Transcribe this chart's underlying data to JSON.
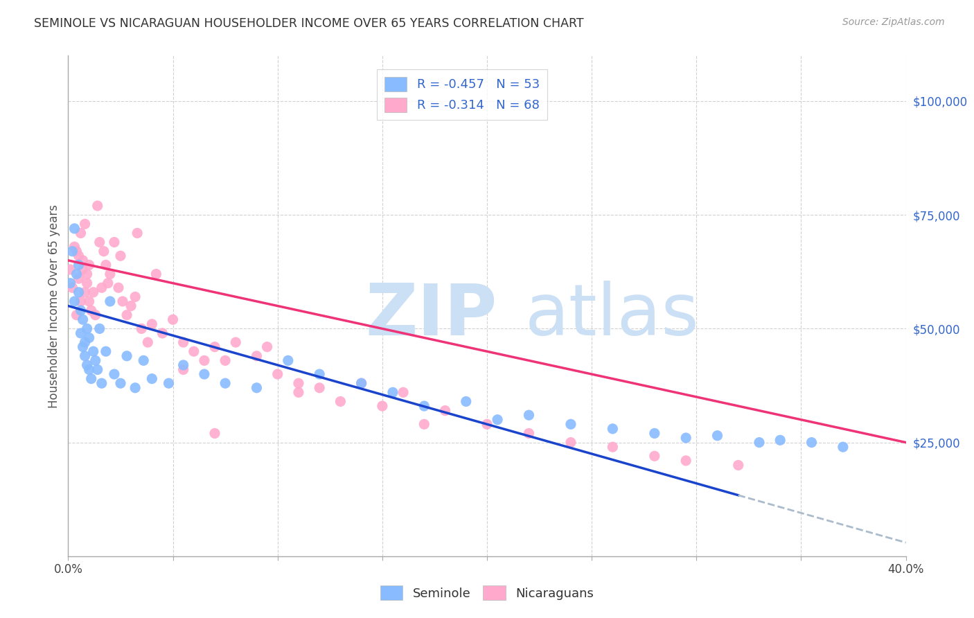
{
  "title": "SEMINOLE VS NICARAGUAN HOUSEHOLDER INCOME OVER 65 YEARS CORRELATION CHART",
  "source": "Source: ZipAtlas.com",
  "ylabel": "Householder Income Over 65 years",
  "x_min": 0.0,
  "x_max": 0.4,
  "y_min": 0,
  "y_max": 110000,
  "x_ticks": [
    0.0,
    0.05,
    0.1,
    0.15,
    0.2,
    0.25,
    0.3,
    0.35,
    0.4
  ],
  "x_tick_labels": [
    "0.0%",
    "",
    "",
    "",
    "",
    "",
    "",
    "",
    "40.0%"
  ],
  "y_ticks": [
    0,
    25000,
    50000,
    75000,
    100000
  ],
  "y_tick_labels": [
    "",
    "$25,000",
    "$50,000",
    "$75,000",
    "$100,000"
  ],
  "seminole_color": "#88bbff",
  "nicaraguan_color": "#ffaacc",
  "line_seminole_color": "#1a44cc",
  "line_nicaraguan_color": "#ee3377",
  "line_extrapolated_color": "#aabbcc",
  "watermark_color": "#cce0f5",
  "legend_r_seminole": "-0.457",
  "legend_n_seminole": "53",
  "legend_r_nicaraguan": "-0.314",
  "legend_n_nicaraguan": "68",
  "legend_label_seminole": "Seminole",
  "legend_label_nicaraguan": "Nicaraguans",
  "seminole_intercept": 55000,
  "seminole_slope": -130000,
  "nicaraguan_intercept": 65000,
  "nicaraguan_slope": -100000,
  "seminole_x": [
    0.001,
    0.002,
    0.003,
    0.003,
    0.004,
    0.005,
    0.005,
    0.006,
    0.006,
    0.007,
    0.007,
    0.008,
    0.008,
    0.009,
    0.009,
    0.01,
    0.01,
    0.011,
    0.012,
    0.013,
    0.014,
    0.015,
    0.016,
    0.018,
    0.02,
    0.022,
    0.025,
    0.028,
    0.032,
    0.036,
    0.04,
    0.048,
    0.055,
    0.065,
    0.075,
    0.09,
    0.105,
    0.12,
    0.14,
    0.155,
    0.17,
    0.19,
    0.205,
    0.22,
    0.24,
    0.26,
    0.28,
    0.295,
    0.31,
    0.33,
    0.34,
    0.355,
    0.37
  ],
  "seminole_y": [
    60000,
    67000,
    72000,
    56000,
    62000,
    58000,
    64000,
    49000,
    54000,
    46000,
    52000,
    47000,
    44000,
    42000,
    50000,
    41000,
    48000,
    39000,
    45000,
    43000,
    41000,
    50000,
    38000,
    45000,
    56000,
    40000,
    38000,
    44000,
    37000,
    43000,
    39000,
    38000,
    42000,
    40000,
    38000,
    37000,
    43000,
    40000,
    38000,
    36000,
    33000,
    34000,
    30000,
    31000,
    29000,
    28000,
    27000,
    26000,
    26500,
    25000,
    25500,
    25000,
    24000
  ],
  "nicaraguan_x": [
    0.001,
    0.002,
    0.003,
    0.004,
    0.004,
    0.005,
    0.005,
    0.006,
    0.006,
    0.007,
    0.007,
    0.008,
    0.008,
    0.009,
    0.009,
    0.01,
    0.01,
    0.011,
    0.012,
    0.013,
    0.014,
    0.015,
    0.016,
    0.017,
    0.018,
    0.019,
    0.02,
    0.022,
    0.024,
    0.026,
    0.028,
    0.03,
    0.032,
    0.035,
    0.038,
    0.04,
    0.045,
    0.05,
    0.055,
    0.06,
    0.065,
    0.07,
    0.075,
    0.08,
    0.09,
    0.1,
    0.11,
    0.12,
    0.13,
    0.14,
    0.15,
    0.16,
    0.17,
    0.18,
    0.2,
    0.22,
    0.24,
    0.26,
    0.28,
    0.295,
    0.055,
    0.07,
    0.095,
    0.11,
    0.025,
    0.033,
    0.042,
    0.32
  ],
  "nicaraguan_y": [
    63000,
    59000,
    68000,
    53000,
    67000,
    61000,
    66000,
    56000,
    71000,
    63000,
    65000,
    58000,
    73000,
    60000,
    62000,
    56000,
    64000,
    54000,
    58000,
    53000,
    77000,
    69000,
    59000,
    67000,
    64000,
    60000,
    62000,
    69000,
    59000,
    56000,
    53000,
    55000,
    57000,
    50000,
    47000,
    51000,
    49000,
    52000,
    47000,
    45000,
    43000,
    46000,
    43000,
    47000,
    44000,
    40000,
    38000,
    37000,
    34000,
    38000,
    33000,
    36000,
    29000,
    32000,
    29000,
    27000,
    25000,
    24000,
    22000,
    21000,
    41000,
    27000,
    46000,
    36000,
    66000,
    71000,
    62000,
    20000
  ]
}
